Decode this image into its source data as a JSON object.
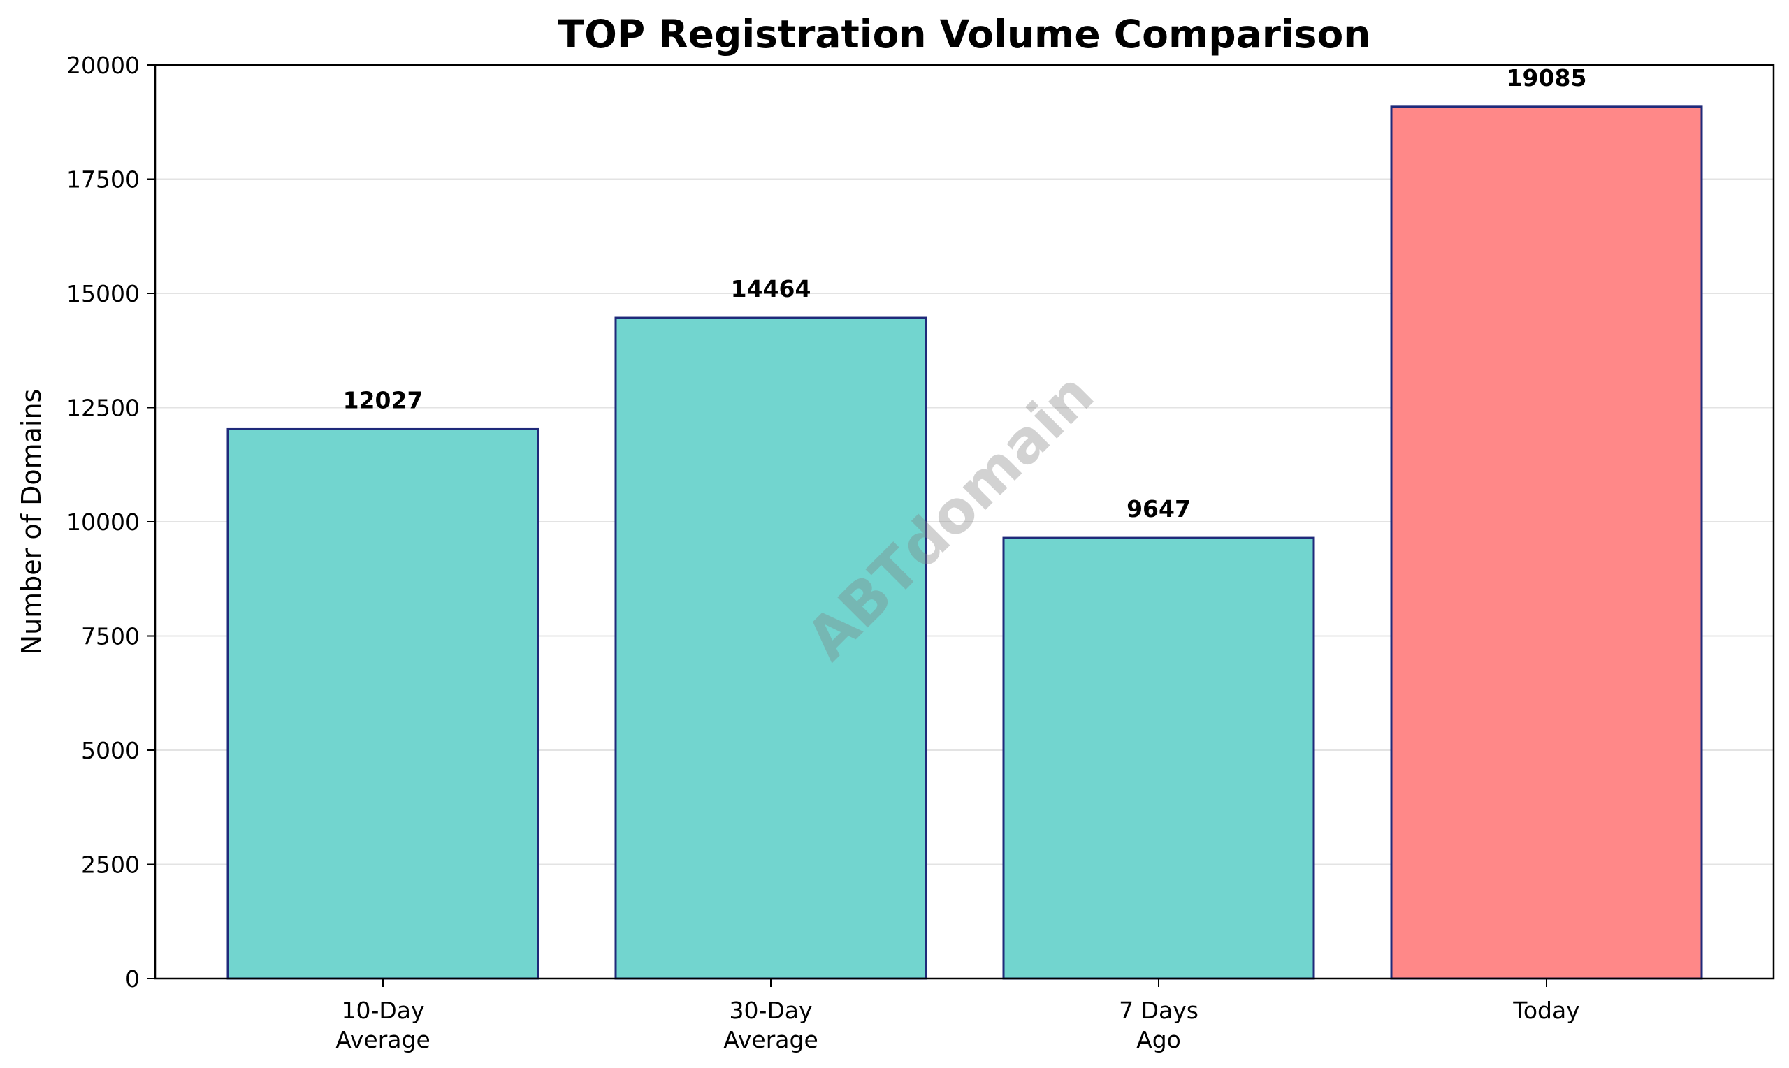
{
  "chart_data": {
    "type": "bar",
    "title": "TOP Registration Volume Comparison",
    "xlabel": "",
    "ylabel": "Number of Domains",
    "categories": [
      [
        "10-Day",
        "Average"
      ],
      [
        "30-Day",
        "Average"
      ],
      [
        "7 Days",
        "Ago"
      ],
      [
        "Today"
      ]
    ],
    "values": [
      12027,
      14464,
      9647,
      19085
    ],
    "value_labels": [
      "12027",
      "14464",
      "9647",
      "19085"
    ],
    "bar_colors": [
      "#72d5cf",
      "#72d5cf",
      "#72d5cf",
      "#ff8888"
    ],
    "bar_edge_color": "#1f2a7a",
    "ylim": [
      0,
      20000
    ],
    "yticks": [
      0,
      2500,
      5000,
      7500,
      10000,
      12500,
      15000,
      17500,
      20000
    ],
    "grid": "horizontal",
    "legend": "none",
    "watermark": "ABTdomain"
  }
}
